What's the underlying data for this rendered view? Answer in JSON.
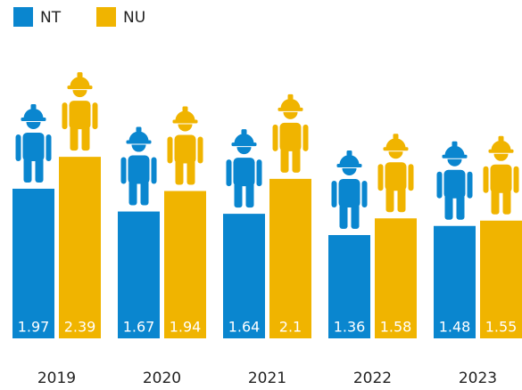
{
  "chart_data": {
    "type": "bar",
    "categories": [
      "2019",
      "2020",
      "2021",
      "2022",
      "2023"
    ],
    "series": [
      {
        "name": "NT",
        "color": "#0a86cf",
        "values": [
          1.97,
          1.67,
          1.64,
          1.36,
          1.48
        ]
      },
      {
        "name": "NU",
        "color": "#f0b400",
        "values": [
          2.39,
          1.94,
          2.1,
          1.58,
          1.55
        ]
      }
    ],
    "legend": "top-left"
  }
}
